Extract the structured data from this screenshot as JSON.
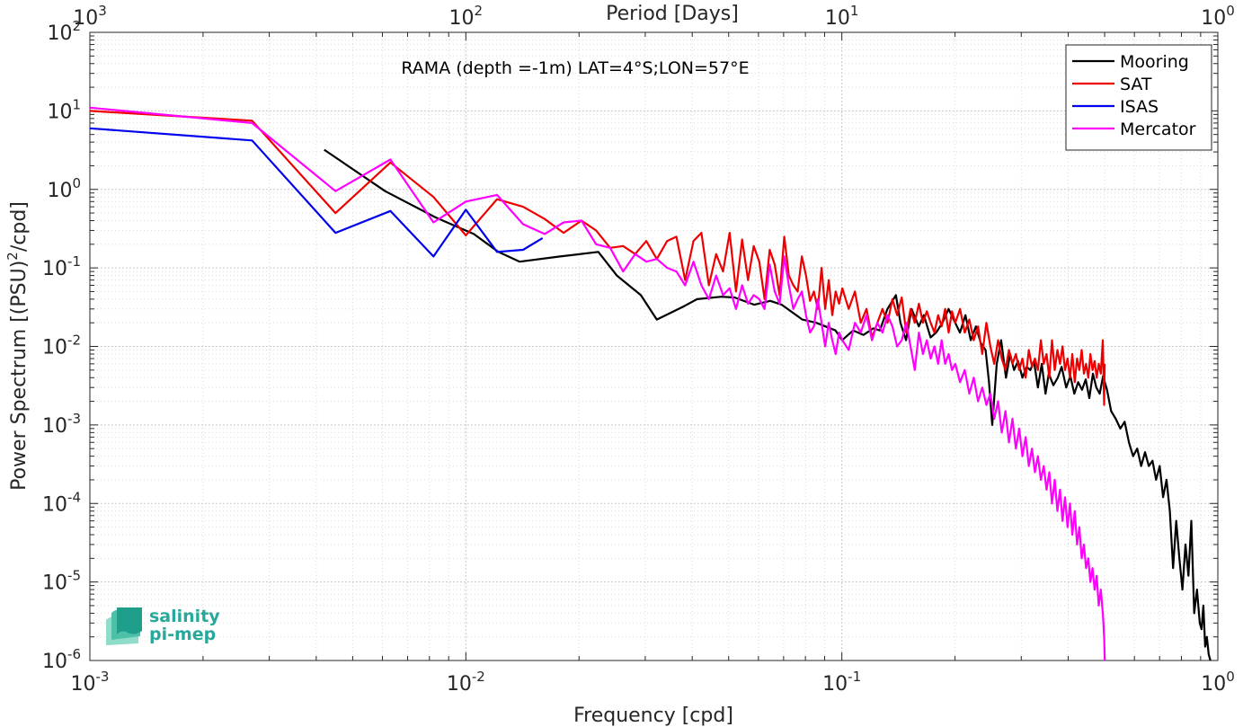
{
  "chart_data": {
    "type": "line",
    "annotation": "RAMA (depth =-1m) LAT=4°S;LON=57°E",
    "xlabel": "Frequency [cpd]",
    "ylabel_parts": [
      "Power Spectrum [(PSU)",
      "2",
      "/cpd]"
    ],
    "top_axis_label": "Period [Days]",
    "x_scale": "log",
    "y_scale": "log",
    "xlim": [
      0.001,
      1
    ],
    "ylim": [
      1e-06,
      100
    ],
    "grid": true,
    "legend_position": "top-right",
    "x_ticks": [
      {
        "value": 0.001,
        "base": "10",
        "exp": "-3"
      },
      {
        "value": 0.01,
        "base": "10",
        "exp": "-2"
      },
      {
        "value": 0.1,
        "base": "10",
        "exp": "-1"
      },
      {
        "value": 1,
        "base": "10",
        "exp": "0"
      }
    ],
    "y_ticks": [
      {
        "value": 1e-06,
        "base": "10",
        "exp": "-6"
      },
      {
        "value": 1e-05,
        "base": "10",
        "exp": "-5"
      },
      {
        "value": 0.0001,
        "base": "10",
        "exp": "-4"
      },
      {
        "value": 0.001,
        "base": "10",
        "exp": "-3"
      },
      {
        "value": 0.01,
        "base": "10",
        "exp": "-2"
      },
      {
        "value": 0.1,
        "base": "10",
        "exp": "-1"
      },
      {
        "value": 1,
        "base": "10",
        "exp": "0"
      },
      {
        "value": 10,
        "base": "10",
        "exp": "1"
      },
      {
        "value": 100,
        "base": "10",
        "exp": "2"
      }
    ],
    "top_ticks": [
      {
        "value": 0.001,
        "base": "10",
        "exp": "3"
      },
      {
        "value": 0.01,
        "base": "10",
        "exp": "2"
      },
      {
        "value": 0.1,
        "base": "10",
        "exp": "1"
      },
      {
        "value": 1,
        "base": "10",
        "exp": "0"
      }
    ],
    "series": [
      {
        "name": "Mooring",
        "color": "#000000",
        "x": [
          0.0042,
          0.0061,
          0.0083,
          0.0105,
          0.0122,
          0.0139,
          0.0178,
          0.0225,
          0.0252,
          0.0292,
          0.0322,
          0.0378,
          0.0412,
          0.0478,
          0.0518,
          0.0585,
          0.0645,
          0.0692,
          0.0785,
          0.0855,
          0.0962,
          0.1002,
          0.1072,
          0.1142,
          0.1212,
          0.1262,
          0.1322,
          0.1392,
          0.1432,
          0.1482,
          0.1532,
          0.1602,
          0.1652,
          0.1722,
          0.1782,
          0.1852,
          0.1922,
          0.2002,
          0.2062,
          0.2132,
          0.2202,
          0.2272,
          0.2342,
          0.2412,
          0.2462,
          0.2512,
          0.2582,
          0.2652,
          0.2732,
          0.2802,
          0.2872,
          0.2942,
          0.3022,
          0.3102,
          0.3172,
          0.3242,
          0.3322,
          0.3402,
          0.3482,
          0.3552,
          0.3652,
          0.3752,
          0.3842,
          0.3952,
          0.4052,
          0.4152,
          0.4252,
          0.4352,
          0.4452,
          0.4552,
          0.4652,
          0.4752,
          0.4852,
          0.4952,
          0.5072,
          0.5202,
          0.5352,
          0.5502,
          0.5652,
          0.5802,
          0.5952,
          0.6102,
          0.6252,
          0.6402,
          0.6552,
          0.6702,
          0.6852,
          0.7002,
          0.7152,
          0.7302,
          0.7452,
          0.7602,
          0.7752,
          0.7902,
          0.8052,
          0.8202,
          0.8352,
          0.8502,
          0.8652,
          0.8802,
          0.8952,
          0.9052,
          0.9152,
          0.9252,
          0.9352,
          0.9452,
          0.9552,
          0.9652,
          0.9752,
          0.985
        ],
        "y": [
          3.2,
          0.95,
          0.44,
          0.27,
          0.16,
          0.12,
          0.14,
          0.16,
          0.08,
          0.045,
          0.022,
          0.032,
          0.04,
          0.043,
          0.042,
          0.034,
          0.038,
          0.034,
          0.022,
          0.02,
          0.016,
          0.012,
          0.016,
          0.014,
          0.017,
          0.016,
          0.03,
          0.045,
          0.02,
          0.012,
          0.03,
          0.018,
          0.025,
          0.013,
          0.015,
          0.02,
          0.03,
          0.02,
          0.015,
          0.025,
          0.012,
          0.018,
          0.011,
          0.009,
          0.0035,
          0.001,
          0.006,
          0.012,
          0.004,
          0.008,
          0.005,
          0.0065,
          0.004,
          0.0055,
          0.005,
          0.0065,
          0.003,
          0.006,
          0.0025,
          0.0045,
          0.0032,
          0.004,
          0.0055,
          0.003,
          0.0042,
          0.0025,
          0.0035,
          0.0028,
          0.0038,
          0.0022,
          0.0045,
          0.003,
          0.0025,
          0.0042,
          0.0028,
          0.0015,
          0.0012,
          0.0009,
          0.0011,
          0.0006,
          0.0004,
          0.0005,
          0.0003,
          0.00045,
          0.0003,
          0.00035,
          0.0002,
          0.0003,
          0.00012,
          0.0002,
          8e-05,
          1.5e-05,
          6e-05,
          2e-05,
          8e-06,
          3e-05,
          1.2e-05,
          6e-05,
          4e-06,
          8e-06,
          3e-06,
          2.5e-06,
          5e-06,
          1.5e-06,
          2e-06,
          1.2e-06,
          1e-06,
          8e-07,
          6e-07,
          5e-07
        ]
      },
      {
        "name": "SAT",
        "color": "#ee0000",
        "x": [
          0.001,
          0.0027,
          0.0045,
          0.0063,
          0.0082,
          0.01,
          0.0121,
          0.0142,
          0.0162,
          0.0182,
          0.0203,
          0.0222,
          0.0242,
          0.0262,
          0.0282,
          0.0302,
          0.0322,
          0.0343,
          0.0363,
          0.0383,
          0.0403,
          0.0423,
          0.0443,
          0.0463,
          0.0483,
          0.0503,
          0.0523,
          0.0543,
          0.0563,
          0.0583,
          0.0603,
          0.0623,
          0.0643,
          0.0663,
          0.0683,
          0.0703,
          0.0723,
          0.0743,
          0.0763,
          0.0783,
          0.0803,
          0.0823,
          0.0843,
          0.0863,
          0.0883,
          0.0903,
          0.0923,
          0.0943,
          0.0963,
          0.0983,
          0.1003,
          0.1043,
          0.1083,
          0.1123,
          0.1163,
          0.1203,
          0.1243,
          0.1283,
          0.1323,
          0.1363,
          0.1403,
          0.1443,
          0.1483,
          0.1523,
          0.1563,
          0.1603,
          0.1643,
          0.1683,
          0.1723,
          0.1763,
          0.1803,
          0.1843,
          0.1883,
          0.1923,
          0.1963,
          0.2003,
          0.2063,
          0.2123,
          0.2183,
          0.2243,
          0.2303,
          0.2363,
          0.2423,
          0.2483,
          0.2543,
          0.2603,
          0.2663,
          0.2723,
          0.2783,
          0.2843,
          0.2903,
          0.2963,
          0.3023,
          0.3083,
          0.3143,
          0.3203,
          0.3263,
          0.3323,
          0.3383,
          0.3443,
          0.3503,
          0.3563,
          0.3623,
          0.3683,
          0.3743,
          0.3803,
          0.3863,
          0.3923,
          0.3983,
          0.4043,
          0.4103,
          0.4163,
          0.4223,
          0.4283,
          0.4343,
          0.4403,
          0.4463,
          0.4523,
          0.4583,
          0.4643,
          0.4703,
          0.4763,
          0.4823,
          0.4883,
          0.4943,
          0.4963,
          0.4983,
          0.5
        ],
        "y": [
          10,
          7.5,
          0.5,
          2.2,
          0.8,
          0.26,
          0.75,
          0.6,
          0.42,
          0.28,
          0.4,
          0.3,
          0.18,
          0.19,
          0.15,
          0.22,
          0.13,
          0.22,
          0.25,
          0.07,
          0.22,
          0.28,
          0.06,
          0.15,
          0.09,
          0.28,
          0.05,
          0.23,
          0.07,
          0.19,
          0.12,
          0.04,
          0.17,
          0.11,
          0.045,
          0.25,
          0.08,
          0.06,
          0.05,
          0.14,
          0.08,
          0.038,
          0.05,
          0.03,
          0.1,
          0.03,
          0.07,
          0.025,
          0.05,
          0.035,
          0.055,
          0.03,
          0.05,
          0.02,
          0.03,
          0.013,
          0.02,
          0.03,
          0.02,
          0.04,
          0.025,
          0.042,
          0.015,
          0.03,
          0.02,
          0.035,
          0.02,
          0.028,
          0.02,
          0.015,
          0.025,
          0.018,
          0.03,
          0.015,
          0.028,
          0.02,
          0.03,
          0.015,
          0.022,
          0.012,
          0.018,
          0.008,
          0.02,
          0.01,
          0.006,
          0.012,
          0.007,
          0.005,
          0.009,
          0.006,
          0.008,
          0.005,
          0.007,
          0.004,
          0.009,
          0.0055,
          0.007,
          0.005,
          0.012,
          0.006,
          0.008,
          0.004,
          0.012,
          0.005,
          0.009,
          0.006,
          0.01,
          0.005,
          0.007,
          0.004,
          0.008,
          0.0035,
          0.007,
          0.005,
          0.009,
          0.0045,
          0.006,
          0.004,
          0.008,
          0.005,
          0.0065,
          0.004,
          0.006,
          0.0045,
          0.012,
          0.005,
          0.0018,
          0.006
        ]
      },
      {
        "name": "ISAS",
        "color": "#0000ee",
        "x": [
          0.001,
          0.0027,
          0.0045,
          0.0063,
          0.0082,
          0.01,
          0.0121,
          0.0142,
          0.016
        ],
        "y": [
          6,
          4.2,
          0.28,
          0.53,
          0.14,
          0.55,
          0.16,
          0.17,
          0.24
        ]
      },
      {
        "name": "Mercator",
        "color": "#ff00ff",
        "x": [
          0.001,
          0.0027,
          0.0045,
          0.0063,
          0.0082,
          0.01,
          0.0121,
          0.0142,
          0.0162,
          0.0182,
          0.0203,
          0.0222,
          0.0242,
          0.0262,
          0.0282,
          0.0302,
          0.0322,
          0.0343,
          0.0363,
          0.0383,
          0.0403,
          0.0423,
          0.0443,
          0.0463,
          0.0483,
          0.0503,
          0.0523,
          0.0543,
          0.0563,
          0.0583,
          0.0603,
          0.0623,
          0.0643,
          0.0663,
          0.0683,
          0.0703,
          0.0723,
          0.0743,
          0.0763,
          0.0783,
          0.0803,
          0.0823,
          0.0843,
          0.0863,
          0.0883,
          0.0903,
          0.0923,
          0.0943,
          0.0963,
          0.0983,
          0.1003,
          0.1043,
          0.1083,
          0.1123,
          0.1163,
          0.1203,
          0.1243,
          0.1283,
          0.1323,
          0.1363,
          0.1403,
          0.1443,
          0.1483,
          0.1523,
          0.1563,
          0.1603,
          0.1643,
          0.1683,
          0.1723,
          0.1763,
          0.1803,
          0.1843,
          0.1883,
          0.1923,
          0.1963,
          0.2003,
          0.2063,
          0.2123,
          0.2183,
          0.2243,
          0.2303,
          0.2363,
          0.2423,
          0.2483,
          0.2543,
          0.2603,
          0.2663,
          0.2723,
          0.2783,
          0.2843,
          0.2903,
          0.2963,
          0.3023,
          0.3083,
          0.3143,
          0.3203,
          0.3263,
          0.3323,
          0.3383,
          0.3443,
          0.3503,
          0.3563,
          0.3623,
          0.3683,
          0.3743,
          0.3803,
          0.3863,
          0.3923,
          0.3983,
          0.4043,
          0.4103,
          0.4163,
          0.4223,
          0.4283,
          0.4343,
          0.4403,
          0.4463,
          0.4523,
          0.4583,
          0.4643,
          0.4703,
          0.4763,
          0.4823,
          0.4883,
          0.4943,
          0.4963,
          0.4983,
          0.5003
        ],
        "y": [
          11,
          7,
          0.95,
          2.4,
          0.38,
          0.7,
          0.85,
          0.36,
          0.27,
          0.38,
          0.4,
          0.2,
          0.18,
          0.09,
          0.15,
          0.12,
          0.13,
          0.1,
          0.09,
          0.06,
          0.12,
          0.06,
          0.04,
          0.08,
          0.045,
          0.055,
          0.03,
          0.06,
          0.035,
          0.045,
          0.04,
          0.03,
          0.11,
          0.05,
          0.035,
          0.14,
          0.06,
          0.03,
          0.04,
          0.05,
          0.025,
          0.015,
          0.018,
          0.04,
          0.02,
          0.01,
          0.02,
          0.012,
          0.008,
          0.015,
          0.012,
          0.009,
          0.02,
          0.015,
          0.025,
          0.012,
          0.02,
          0.015,
          0.025,
          0.018,
          0.01,
          0.012,
          0.02,
          0.01,
          0.005,
          0.015,
          0.008,
          0.012,
          0.007,
          0.01,
          0.006,
          0.012,
          0.006,
          0.008,
          0.005,
          0.006,
          0.0035,
          0.005,
          0.0025,
          0.004,
          0.002,
          0.003,
          0.0018,
          0.0025,
          0.0012,
          0.002,
          0.0008,
          0.0015,
          0.0006,
          0.0012,
          0.0005,
          0.0009,
          0.0004,
          0.0007,
          0.0003,
          0.0005,
          0.00025,
          0.0004,
          0.0002,
          0.0003,
          0.00015,
          0.00025,
          0.0001,
          0.0002,
          8e-05,
          0.00015,
          6e-05,
          0.00012,
          5e-05,
          0.0001,
          4e-05,
          8e-05,
          3e-05,
          5e-05,
          2e-05,
          3e-05,
          1.5e-05,
          2e-05,
          1e-05,
          1.5e-05,
          8e-06,
          1.2e-05,
          5e-06,
          8e-06,
          4e-06,
          3e-06,
          2e-06,
          1e-06
        ]
      }
    ]
  },
  "logo": {
    "line1": "salinity",
    "line2": "pi-mep"
  }
}
